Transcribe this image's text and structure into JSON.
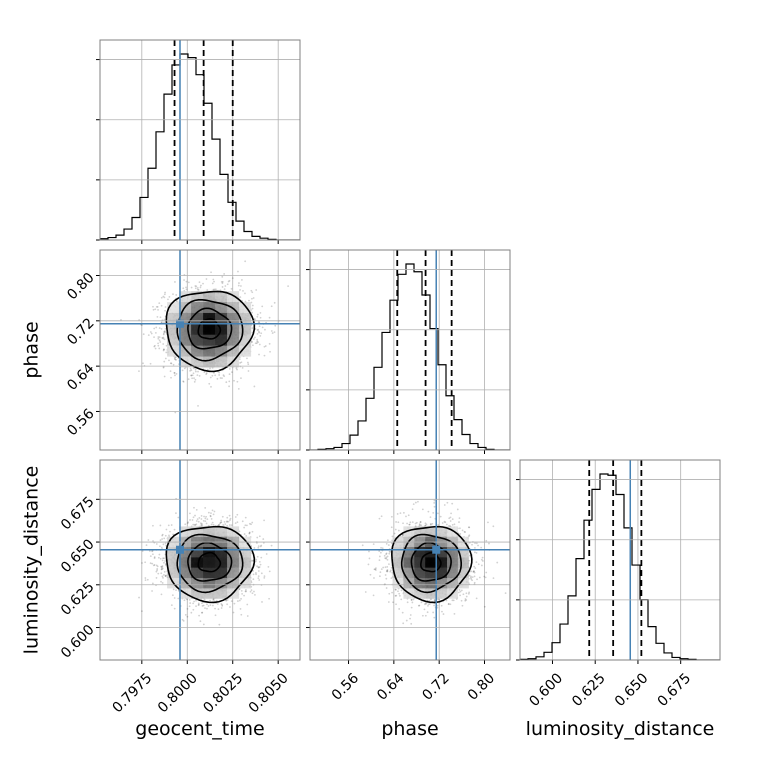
{
  "chart_data": {
    "type": "corner",
    "parameters": [
      "geocent_time",
      "phase",
      "luminosity_distance"
    ],
    "axis_labels": [
      "geocent_time",
      "phase",
      "luminosity_distance"
    ],
    "ranges": [
      [
        0.7952,
        0.8062
      ],
      [
        0.492,
        0.845
      ],
      [
        0.581,
        0.698
      ]
    ],
    "ticks": [
      {
        "values": [
          0.7975,
          0.8,
          0.8025,
          0.805
        ],
        "labels": [
          "0.7975",
          "0.8000",
          "0.8025",
          "0.8050"
        ]
      },
      {
        "values": [
          0.56,
          0.64,
          0.72,
          0.8
        ],
        "labels": [
          "0.56",
          "0.64",
          "0.72",
          "0.80"
        ]
      },
      {
        "values": [
          0.6,
          0.625,
          0.65,
          0.675
        ],
        "labels": [
          "0.600",
          "0.625",
          "0.650",
          "0.675"
        ]
      }
    ],
    "means": [
      0.8012,
      0.705,
      0.638
    ],
    "sigmas": [
      0.0012,
      0.035,
      0.011
    ],
    "quantiles": [
      [
        0.7993,
        0.8009,
        0.8025
      ],
      [
        0.646,
        0.696,
        0.742
      ],
      [
        0.6215,
        0.6355,
        0.652
      ]
    ],
    "truths": [
      0.7996,
      0.7148,
      0.6455
    ],
    "truth_color": "#4682b4",
    "histogram_color": "#000000",
    "grid": true,
    "marginal_histograms": [
      {
        "parameter": "geocent_time",
        "bins": 25,
        "counts": [
          2,
          4,
          8,
          18,
          37,
          70,
          118,
          178,
          240,
          288,
          306,
          300,
          272,
          225,
          166,
          108,
          62,
          31,
          14,
          6,
          3,
          1,
          0,
          0,
          0
        ]
      },
      {
        "parameter": "phase",
        "bins": 25,
        "counts": [
          0,
          1,
          2,
          4,
          10,
          23,
          45,
          80,
          128,
          182,
          232,
          272,
          288,
          276,
          240,
          188,
          132,
          84,
          47,
          24,
          10,
          4,
          1,
          0,
          0
        ]
      },
      {
        "parameter": "luminosity_distance",
        "bins": 25,
        "counts": [
          1,
          2,
          5,
          12,
          27,
          56,
          100,
          158,
          218,
          266,
          290,
          288,
          258,
          206,
          148,
          94,
          52,
          26,
          11,
          4,
          2,
          1,
          0,
          0,
          0
        ]
      }
    ]
  }
}
